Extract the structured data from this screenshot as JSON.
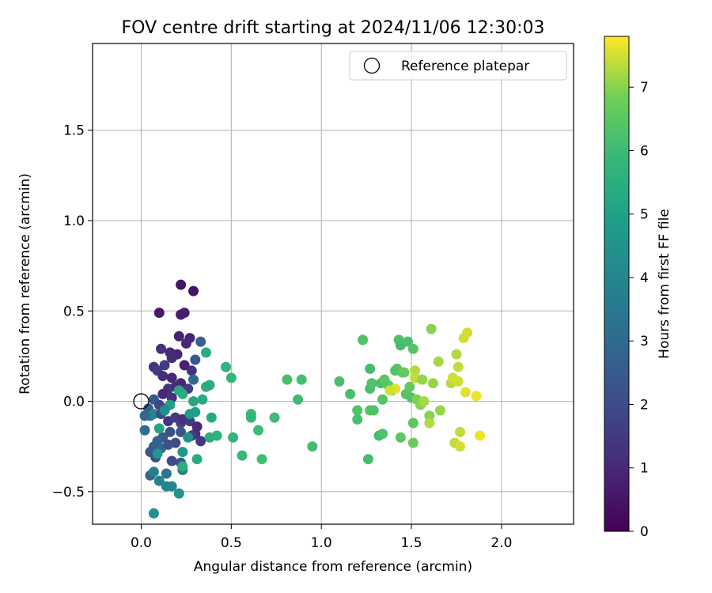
{
  "chart_data": {
    "type": "scatter",
    "title": "FOV centre drift starting at 2024/11/06 12:30:03",
    "xlabel": "Angular distance from reference (arcmin)",
    "ylabel": "Rotation from reference (arcmin)",
    "xlim": [
      -0.27,
      2.4
    ],
    "ylim": [
      -0.68,
      1.98
    ],
    "xticks": [
      0.0,
      0.5,
      1.0,
      1.5,
      2.0
    ],
    "xtick_labels": [
      "0.0",
      "0.5",
      "1.0",
      "1.5",
      "2.0"
    ],
    "yticks": [
      -0.5,
      0.0,
      0.5,
      1.0,
      1.5
    ],
    "ytick_labels": [
      "−0.5",
      "0.0",
      "0.5",
      "1.0",
      "1.5"
    ],
    "grid": true,
    "legend": {
      "placement": "top-right",
      "entries": [
        "Reference platepar"
      ]
    },
    "reference_point": {
      "x": 0.0,
      "y": 0.0,
      "label": "Reference platepar"
    },
    "colorbar": {
      "label": "Hours from first FF file",
      "range": [
        0,
        7.8
      ],
      "ticks": [
        0,
        1,
        2,
        3,
        4,
        5,
        6,
        7
      ],
      "tick_labels": [
        "0",
        "1",
        "2",
        "3",
        "4",
        "5",
        "6",
        "7"
      ],
      "colormap": "viridis"
    },
    "points": [
      [
        0.22,
        0.645,
        0.5
      ],
      [
        0.29,
        0.61,
        0.5
      ],
      [
        0.1,
        0.49,
        0.6
      ],
      [
        0.22,
        0.48,
        0.7
      ],
      [
        0.24,
        0.49,
        0.7
      ],
      [
        0.21,
        0.36,
        0.8
      ],
      [
        0.27,
        0.35,
        0.9
      ],
      [
        0.25,
        0.32,
        1.0
      ],
      [
        0.11,
        0.29,
        1.2
      ],
      [
        0.16,
        0.27,
        1.0
      ],
      [
        0.2,
        0.26,
        0.9
      ],
      [
        0.17,
        0.24,
        1.1
      ],
      [
        0.13,
        0.2,
        1.6
      ],
      [
        0.07,
        0.19,
        1.3
      ],
      [
        0.09,
        0.17,
        1.5
      ],
      [
        0.12,
        0.14,
        1.2
      ],
      [
        0.17,
        0.13,
        1.0
      ],
      [
        0.24,
        0.2,
        0.8
      ],
      [
        0.28,
        0.17,
        1.2
      ],
      [
        0.3,
        0.23,
        2.5
      ],
      [
        0.33,
        0.33,
        2.8
      ],
      [
        0.22,
        0.1,
        0.9
      ],
      [
        0.19,
        0.08,
        1.0
      ],
      [
        0.15,
        0.07,
        1.3
      ],
      [
        0.26,
        0.07,
        1.5
      ],
      [
        0.29,
        0.12,
        3.0
      ],
      [
        0.12,
        0.04,
        1.0
      ],
      [
        0.17,
        0.02,
        1.3
      ],
      [
        0.07,
        0.01,
        2.5
      ],
      [
        0.1,
        -0.02,
        1.8
      ],
      [
        0.13,
        -0.04,
        2.0
      ],
      [
        0.04,
        -0.04,
        2.6
      ],
      [
        0.05,
        -0.08,
        3.5
      ],
      [
        0.07,
        -0.07,
        4.0
      ],
      [
        0.11,
        -0.07,
        2.0
      ],
      [
        0.02,
        -0.08,
        2.9
      ],
      [
        0.15,
        -0.11,
        1.3
      ],
      [
        0.19,
        -0.09,
        1.5
      ],
      [
        0.22,
        -0.12,
        1.8
      ],
      [
        0.23,
        -0.1,
        1.2
      ],
      [
        0.27,
        -0.11,
        1.5
      ],
      [
        0.31,
        -0.14,
        1.0
      ],
      [
        0.33,
        -0.22,
        1.4
      ],
      [
        0.3,
        -0.18,
        1.1
      ],
      [
        0.28,
        -0.19,
        1.6
      ],
      [
        0.22,
        -0.17,
        2.3
      ],
      [
        0.19,
        -0.23,
        2.0
      ],
      [
        0.16,
        -0.17,
        2.2
      ],
      [
        0.12,
        -0.2,
        2.5
      ],
      [
        0.09,
        -0.22,
        2.8
      ],
      [
        0.07,
        -0.25,
        2.6
      ],
      [
        0.05,
        -0.28,
        2.4
      ],
      [
        0.08,
        -0.31,
        2.1
      ],
      [
        0.11,
        -0.26,
        2.9
      ],
      [
        0.15,
        -0.24,
        2.2
      ],
      [
        0.17,
        -0.33,
        2.0
      ],
      [
        0.22,
        -0.34,
        2.2
      ],
      [
        0.02,
        -0.16,
        3.2
      ],
      [
        0.05,
        -0.41,
        2.8
      ],
      [
        0.07,
        -0.39,
        3.8
      ],
      [
        0.1,
        -0.44,
        3.9
      ],
      [
        0.14,
        -0.4,
        3.4
      ],
      [
        0.14,
        -0.47,
        4.0
      ],
      [
        0.17,
        -0.47,
        4.1
      ],
      [
        0.21,
        -0.51,
        4.5
      ],
      [
        0.23,
        -0.38,
        3.7
      ],
      [
        0.23,
        -0.28,
        4.7
      ],
      [
        0.23,
        -0.36,
        5.5
      ],
      [
        0.31,
        -0.32,
        5.3
      ],
      [
        0.26,
        -0.2,
        4.5
      ],
      [
        0.27,
        -0.07,
        4.8
      ],
      [
        0.3,
        -0.06,
        4.9
      ],
      [
        0.29,
        0.0,
        5.2
      ],
      [
        0.34,
        0.01,
        5.3
      ],
      [
        0.21,
        0.06,
        5.3
      ],
      [
        0.23,
        0.04,
        5.4
      ],
      [
        0.16,
        -0.02,
        5.0
      ],
      [
        0.13,
        -0.05,
        4.3
      ],
      [
        0.1,
        -0.15,
        5.1
      ],
      [
        0.09,
        -0.29,
        4.6
      ],
      [
        0.07,
        -0.62,
        4.4
      ],
      [
        0.36,
        0.27,
        5.4
      ],
      [
        0.38,
        0.09,
        5.5
      ],
      [
        0.36,
        0.08,
        5.4
      ],
      [
        0.39,
        -0.09,
        5.3
      ],
      [
        0.38,
        -0.2,
        5.4
      ],
      [
        0.42,
        -0.19,
        5.6
      ],
      [
        0.47,
        0.19,
        5.7
      ],
      [
        0.5,
        0.13,
        5.8
      ],
      [
        0.51,
        -0.2,
        5.8
      ],
      [
        0.56,
        -0.3,
        5.9
      ],
      [
        0.61,
        -0.07,
        5.9
      ],
      [
        0.61,
        -0.09,
        5.8
      ],
      [
        0.65,
        -0.16,
        6.0
      ],
      [
        0.67,
        -0.32,
        6.1
      ],
      [
        0.74,
        -0.09,
        6.0
      ],
      [
        0.81,
        0.12,
        6.2
      ],
      [
        0.87,
        0.01,
        6.0
      ],
      [
        0.89,
        0.12,
        6.1
      ],
      [
        0.95,
        -0.25,
        6.1
      ],
      [
        1.1,
        0.11,
        6.2
      ],
      [
        1.16,
        0.04,
        6.2
      ],
      [
        1.2,
        -0.05,
        6.3
      ],
      [
        1.2,
        -0.1,
        6.2
      ],
      [
        1.23,
        0.34,
        6.3
      ],
      [
        1.26,
        -0.32,
        6.1
      ],
      [
        1.27,
        0.07,
        6.2
      ],
      [
        1.28,
        0.1,
        6.3
      ],
      [
        1.27,
        0.18,
        6.1
      ],
      [
        1.27,
        -0.05,
        6.4
      ],
      [
        1.29,
        -0.05,
        6.3
      ],
      [
        1.32,
        -0.19,
        6.1
      ],
      [
        1.34,
        -0.18,
        6.3
      ],
      [
        1.33,
        0.1,
        6.2
      ],
      [
        1.35,
        0.12,
        6.5
      ],
      [
        1.34,
        0.01,
        6.4
      ],
      [
        1.37,
        0.09,
        6.4
      ],
      [
        1.38,
        0.08,
        6.5
      ],
      [
        1.39,
        0.06,
        6.6
      ],
      [
        1.41,
        0.17,
        6.3
      ],
      [
        1.42,
        0.18,
        6.4
      ],
      [
        1.43,
        0.34,
        6.3
      ],
      [
        1.44,
        0.31,
        6.1
      ],
      [
        1.44,
        -0.2,
        6.5
      ],
      [
        1.45,
        0.16,
        6.5
      ],
      [
        1.46,
        0.16,
        6.7
      ],
      [
        1.47,
        0.04,
        6.4
      ],
      [
        1.48,
        0.33,
        6.2
      ],
      [
        1.49,
        0.08,
        6.6
      ],
      [
        1.5,
        0.02,
        6.3
      ],
      [
        1.51,
        0.29,
        6.4
      ],
      [
        1.51,
        -0.12,
        6.5
      ],
      [
        1.51,
        -0.23,
        6.7
      ],
      [
        1.52,
        0.17,
        7.3
      ],
      [
        1.52,
        0.13,
        7.4
      ],
      [
        1.53,
        0.01,
        6.9
      ],
      [
        1.55,
        -0.02,
        7.0
      ],
      [
        1.56,
        0.12,
        7.1
      ],
      [
        1.57,
        0.0,
        7.2
      ],
      [
        1.6,
        -0.08,
        7.0
      ],
      [
        1.6,
        -0.12,
        7.3
      ],
      [
        1.61,
        0.4,
        7.0
      ],
      [
        1.62,
        0.1,
        7.1
      ],
      [
        1.65,
        0.22,
        7.2
      ],
      [
        1.66,
        -0.05,
        7.1
      ],
      [
        1.72,
        0.1,
        7.3
      ],
      [
        1.73,
        0.13,
        7.5
      ],
      [
        1.74,
        -0.23,
        7.4
      ],
      [
        1.75,
        0.26,
        7.3
      ],
      [
        1.76,
        0.19,
        7.4
      ],
      [
        1.76,
        0.11,
        7.5
      ],
      [
        1.77,
        -0.25,
        7.5
      ],
      [
        1.77,
        -0.17,
        7.4
      ],
      [
        1.79,
        0.35,
        7.5
      ],
      [
        1.8,
        0.05,
        7.6
      ],
      [
        1.81,
        0.38,
        7.5
      ],
      [
        1.86,
        0.03,
        7.7
      ],
      [
        1.88,
        -0.19,
        7.7
      ],
      [
        1.41,
        0.07,
        7.6
      ],
      [
        1.38,
        0.06,
        7.5
      ]
    ]
  }
}
